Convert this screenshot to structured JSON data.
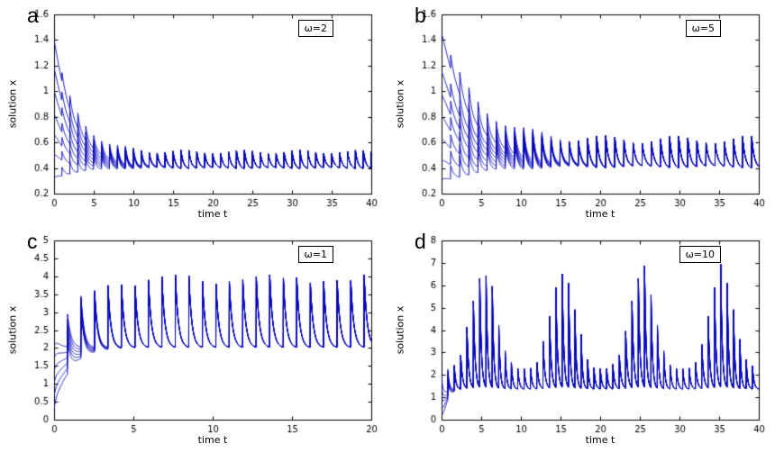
{
  "figure": {
    "background": "#ffffff",
    "line_color": "#0000bb",
    "axis_color": "#000000"
  },
  "chart_data": [
    {
      "type": "line",
      "panel_label": "a",
      "legend": "ω=2",
      "xlabel": "time t",
      "ylabel": "solution x",
      "xlim": [
        0,
        40
      ],
      "ylim": [
        0.2,
        1.6
      ],
      "xticks": [
        0,
        5,
        10,
        15,
        20,
        25,
        30,
        35,
        40
      ],
      "yticks": [
        0.2,
        0.4,
        0.6,
        0.8,
        1,
        1.2,
        1.4,
        1.6
      ],
      "grid": false,
      "legend_position": "top-right",
      "model": {
        "type": "sawtooth",
        "x_star": 0.43,
        "decay": 0.38,
        "tooth_period": 1.0,
        "tooth_amp": 0.13,
        "ramp_time": 1.5,
        "mod": 0.15,
        "mod_period": 7.3,
        "initial_conditions": [
          0.32,
          0.5,
          0.66,
          0.82,
          1.0,
          1.18,
          1.4
        ]
      }
    },
    {
      "type": "line",
      "panel_label": "b",
      "legend": "ω=5",
      "xlabel": "time t",
      "ylabel": "solution x",
      "xlim": [
        0,
        40
      ],
      "ylim": [
        0.2,
        1.6
      ],
      "xticks": [
        0,
        5,
        10,
        15,
        20,
        25,
        30,
        35,
        40
      ],
      "yticks": [
        0.2,
        0.4,
        0.6,
        0.8,
        1,
        1.2,
        1.4,
        1.6
      ],
      "grid": false,
      "legend_position": "top-right",
      "model": {
        "type": "sawtooth",
        "x_star": 0.46,
        "decay": 0.25,
        "tooth_period": 1.15,
        "tooth_amp": 0.22,
        "ramp_time": 2.0,
        "mod": 0.18,
        "mod_period": 9.1,
        "initial_conditions": [
          0.3,
          0.45,
          0.62,
          0.8,
          0.97,
          1.15,
          1.45
        ]
      }
    },
    {
      "type": "line",
      "panel_label": "c",
      "legend": "ω=1",
      "xlabel": "time t",
      "ylabel": "solution x",
      "xlim": [
        0,
        20
      ],
      "ylim": [
        0,
        5
      ],
      "xticks": [
        0,
        5,
        10,
        15,
        20
      ],
      "yticks": [
        0,
        0.5,
        1,
        1.5,
        2,
        2.5,
        3,
        3.5,
        4,
        4.5,
        5
      ],
      "grid": false,
      "legend_position": "top-right",
      "model": {
        "type": "spike",
        "x_star": 2.0,
        "decay": 1.0,
        "tooth_period": 0.85,
        "tooth_amp": 1.95,
        "ramp_time": 1.4,
        "mod": 0.05,
        "mod_period": 6.2,
        "initial_conditions": [
          0.3,
          0.65,
          1.0,
          1.35,
          1.7,
          2.05
        ]
      }
    },
    {
      "type": "line",
      "panel_label": "d",
      "legend": "ω=10",
      "xlabel": "time t",
      "ylabel": "solution x",
      "xlim": [
        0,
        40
      ],
      "ylim": [
        0,
        8
      ],
      "xticks": [
        0,
        5,
        10,
        15,
        20,
        25,
        30,
        35,
        40
      ],
      "yticks": [
        0,
        1,
        2,
        3,
        4,
        5,
        6,
        7,
        8
      ],
      "grid": false,
      "legend_position": "top-right",
      "model": {
        "type": "burst",
        "base": 1.35,
        "decay": 1.8,
        "spike_period": 0.8,
        "amp0": 1.0,
        "amp1": 4.6,
        "env_period": 10,
        "peak_time": 5.3,
        "initial_conditions": [
          0.3,
          0.7,
          1.1,
          1.5,
          1.9
        ]
      }
    }
  ]
}
